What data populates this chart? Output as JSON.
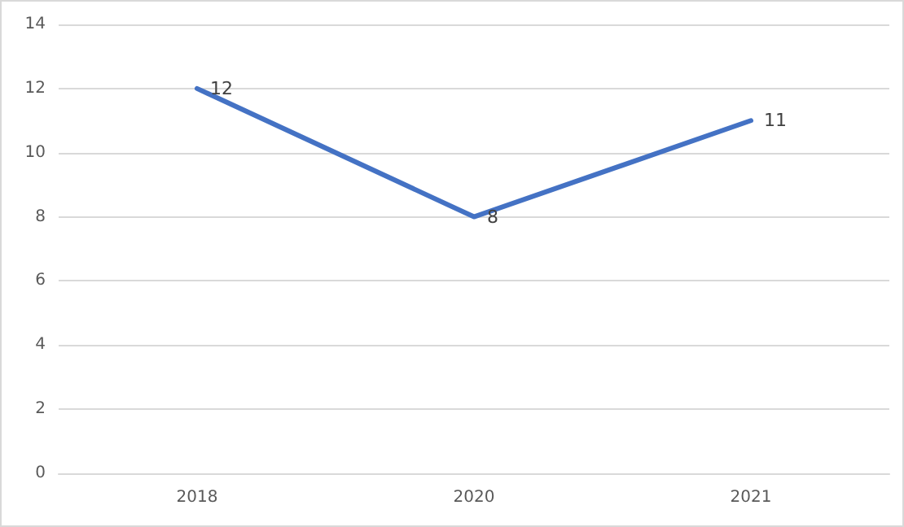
{
  "chart_data": {
    "type": "line",
    "categories": [
      "2018",
      "2020",
      "2021"
    ],
    "series": [
      {
        "color": "#4472c4",
        "values": [
          12,
          8,
          11
        ]
      }
    ],
    "ylim": [
      0,
      14
    ],
    "yticks": [
      0,
      2,
      4,
      6,
      8,
      10,
      12,
      14
    ],
    "grid": "y",
    "data_labels": true,
    "marker": "none",
    "line_style": "solid"
  }
}
